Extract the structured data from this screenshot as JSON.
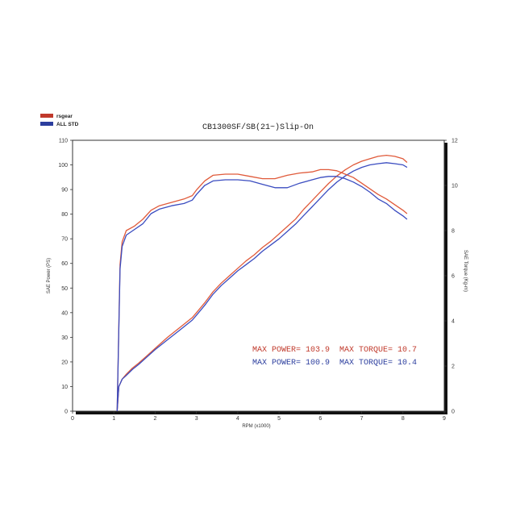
{
  "chart_data": {
    "type": "line",
    "title": "CB1300SF/SB(21~)Slip-On",
    "xlabel": "RPM (x1000)",
    "ylabel": "SAE Power (PS)",
    "y2label": "SAE Torque (Kg-m)",
    "xlim": [
      0,
      9
    ],
    "ylim": [
      0,
      110
    ],
    "y2lim": [
      0,
      12
    ],
    "x_ticks": [
      "0",
      "1",
      "2",
      "3",
      "4",
      "5",
      "6",
      "7",
      "8",
      "9"
    ],
    "y_ticks": [
      "0",
      "10",
      "20",
      "30",
      "40",
      "50",
      "60",
      "70",
      "80",
      "90",
      "100",
      "110"
    ],
    "y2_ticks": [
      "0",
      "2",
      "4",
      "6",
      "8",
      "10",
      "12"
    ],
    "grid": false,
    "legend": {
      "placement": "top-left",
      "items": [
        {
          "label": "rsgear",
          "color": "#c0392b"
        },
        {
          "label": "ALL STD",
          "color": "#2c3e9e"
        }
      ]
    },
    "annotations": {
      "rsgear": {
        "max_power": "MAX POWER= 103.9",
        "max_torque": "MAX TORQUE= 10.7",
        "color": "#c0392b"
      },
      "std": {
        "max_power": "MAX POWER= 100.9",
        "max_torque": "MAX TORQUE= 10.4",
        "color": "#2c3e9e"
      }
    },
    "series": [
      {
        "name": "rsgear",
        "quantity": "power",
        "axis": "left",
        "color": "#e05a3a",
        "x": [
          1.08,
          1.12,
          1.2,
          1.3,
          1.45,
          1.6,
          1.8,
          2.0,
          2.3,
          2.6,
          2.9,
          3.0,
          3.2,
          3.4,
          3.6,
          3.8,
          4.0,
          4.2,
          4.4,
          4.6,
          4.8,
          5.0,
          5.2,
          5.4,
          5.6,
          5.8,
          6.0,
          6.2,
          6.4,
          6.6,
          6.8,
          7.0,
          7.2,
          7.4,
          7.6,
          7.8,
          8.0,
          8.1
        ],
        "y": [
          0,
          10,
          13,
          15,
          17.5,
          19.5,
          22.5,
          25.5,
          30,
          34,
          38,
          40,
          44,
          48.5,
          52,
          55,
          58,
          61,
          63.5,
          66.5,
          69,
          72,
          75,
          78,
          82,
          85.5,
          89,
          92.5,
          95.5,
          98,
          100,
          101.5,
          102.5,
          103.5,
          103.9,
          103.5,
          102.5,
          101
        ]
      },
      {
        "name": "ALL STD",
        "quantity": "power",
        "axis": "left",
        "color": "#3a4cc0",
        "x": [
          1.08,
          1.12,
          1.2,
          1.3,
          1.45,
          1.6,
          1.8,
          2.0,
          2.3,
          2.6,
          2.9,
          3.0,
          3.2,
          3.4,
          3.6,
          3.8,
          4.0,
          4.2,
          4.4,
          4.6,
          4.8,
          5.0,
          5.2,
          5.4,
          5.6,
          5.8,
          6.0,
          6.2,
          6.4,
          6.6,
          6.8,
          7.0,
          7.2,
          7.4,
          7.6,
          7.8,
          8.0,
          8.1
        ],
        "y": [
          0,
          10,
          13,
          14.5,
          17,
          19,
          22,
          25,
          29,
          33,
          37,
          39,
          43,
          47.5,
          51,
          54,
          57,
          59.5,
          62,
          65,
          67.5,
          70,
          73,
          76,
          79.5,
          83,
          86.5,
          90,
          93,
          95.5,
          97.5,
          99,
          100,
          100.5,
          100.9,
          100.5,
          100,
          99
        ]
      },
      {
        "name": "rsgear",
        "quantity": "torque",
        "axis": "right",
        "color": "#e05a3a",
        "x": [
          1.08,
          1.15,
          1.2,
          1.3,
          1.5,
          1.7,
          1.9,
          2.1,
          2.4,
          2.7,
          2.9,
          3.0,
          3.2,
          3.4,
          3.7,
          4.0,
          4.3,
          4.6,
          4.9,
          5.2,
          5.5,
          5.8,
          6.0,
          6.2,
          6.4,
          6.6,
          6.8,
          7.0,
          7.2,
          7.4,
          7.6,
          7.8,
          8.0,
          8.1
        ],
        "y": [
          0,
          6.5,
          7.5,
          8.0,
          8.2,
          8.5,
          8.9,
          9.1,
          9.25,
          9.4,
          9.55,
          9.8,
          10.2,
          10.45,
          10.5,
          10.5,
          10.4,
          10.3,
          10.3,
          10.45,
          10.55,
          10.6,
          10.7,
          10.7,
          10.65,
          10.5,
          10.35,
          10.1,
          9.85,
          9.6,
          9.4,
          9.15,
          8.9,
          8.75
        ]
      },
      {
        "name": "ALL STD",
        "quantity": "torque",
        "axis": "right",
        "color": "#3a4cc0",
        "x": [
          1.08,
          1.15,
          1.2,
          1.3,
          1.5,
          1.7,
          1.9,
          2.1,
          2.4,
          2.7,
          2.9,
          3.0,
          3.2,
          3.4,
          3.7,
          4.0,
          4.3,
          4.6,
          4.9,
          5.2,
          5.5,
          5.8,
          6.0,
          6.2,
          6.4,
          6.6,
          6.8,
          7.0,
          7.2,
          7.4,
          7.6,
          7.8,
          8.0,
          8.1
        ],
        "y": [
          0,
          6.3,
          7.3,
          7.8,
          8.05,
          8.3,
          8.75,
          8.95,
          9.1,
          9.2,
          9.35,
          9.6,
          10.0,
          10.2,
          10.25,
          10.25,
          10.2,
          10.05,
          9.9,
          9.9,
          10.1,
          10.25,
          10.35,
          10.4,
          10.4,
          10.3,
          10.15,
          9.95,
          9.7,
          9.4,
          9.2,
          8.9,
          8.65,
          8.5
        ]
      }
    ]
  }
}
